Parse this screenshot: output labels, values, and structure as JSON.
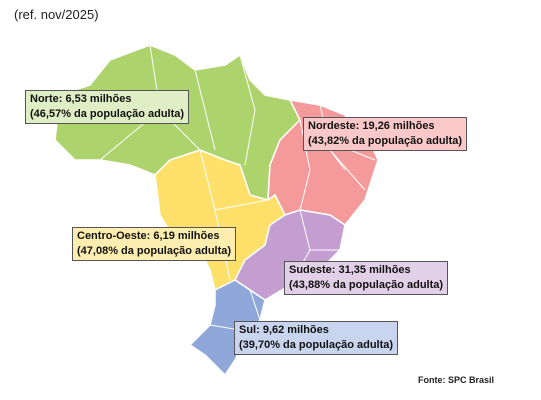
{
  "header": {
    "ref": "(ref. nov/2025)"
  },
  "regions": [
    {
      "line1": "Norte: 6,53 milhões",
      "line2": "(46,57% da população adulta)"
    },
    {
      "line1": "Nordeste: 19,26 milhões",
      "line2": "(43,82% da população adulta)"
    },
    {
      "line1": "Centro-Oeste: 6,19 milhões",
      "line2": "(47,08% da população adulta)"
    },
    {
      "line1": "Sudeste: 31,35 milhões",
      "line2": "(43,88% da população adulta)"
    },
    {
      "line1": "Sul: 9,62 milhões",
      "line2": "(39,70% da população adulta)"
    }
  ],
  "footer": {
    "source": "Fonte: SPC Brasil"
  }
}
